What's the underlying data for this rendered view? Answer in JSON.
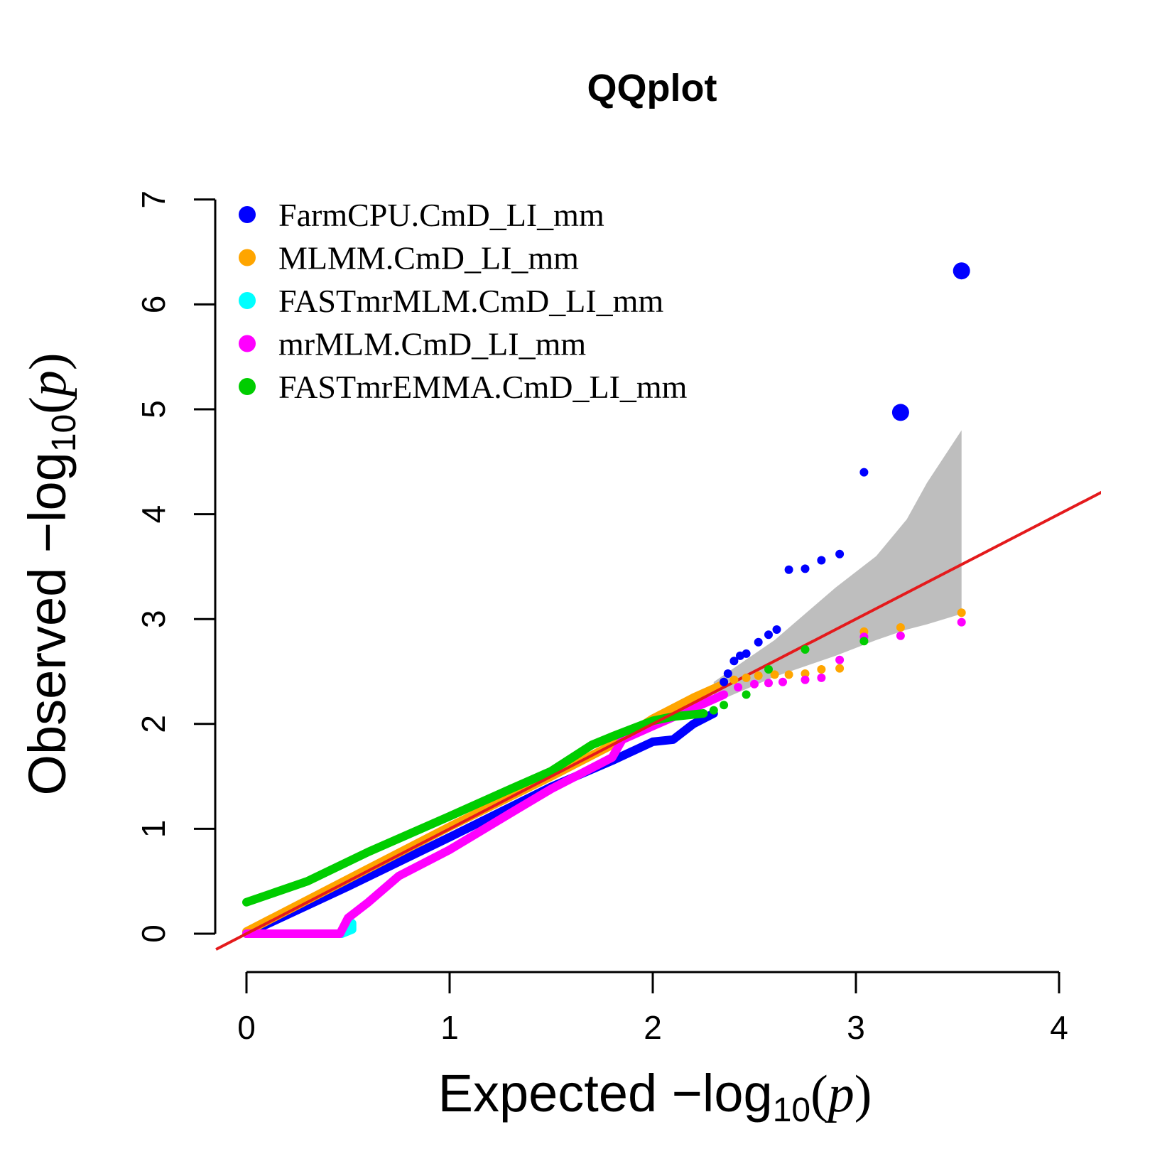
{
  "chart_data": {
    "type": "scatter",
    "title": "QQplot",
    "xlabel": {
      "prefix": "Expected  −log",
      "sub": "10",
      "mid": "(",
      "var": "p",
      "end": ")"
    },
    "ylabel": {
      "prefix": "Observed  −log",
      "sub": "10",
      "mid": "(",
      "var": "p",
      "end": ")"
    },
    "xlim": [
      0,
      4
    ],
    "ylim": [
      0,
      7
    ],
    "x_ticks": [
      0,
      1,
      2,
      3,
      4
    ],
    "y_ticks": [
      0,
      1,
      2,
      3,
      4,
      5,
      6,
      7
    ],
    "grid": false,
    "legend_position": "top-left",
    "reference_line": {
      "color": "#e41a1c",
      "slope": 1,
      "intercept": 0
    },
    "confidence_band": {
      "color": "#bebebe",
      "x": [
        2.3,
        2.6,
        2.9,
        3.1,
        3.25,
        3.35,
        3.52
      ],
      "upper": [
        2.4,
        2.8,
        3.3,
        3.6,
        3.95,
        4.3,
        4.8
      ],
      "lower": [
        2.2,
        2.45,
        2.65,
        2.8,
        2.9,
        2.95,
        3.05
      ]
    },
    "series": [
      {
        "name": "FarmCPU.CmD_LI_mm",
        "color": "#0000ff",
        "curve": [
          [
            0,
            0
          ],
          [
            0.5,
            0.45
          ],
          [
            1,
            0.92
          ],
          [
            1.5,
            1.4
          ],
          [
            1.8,
            1.65
          ],
          [
            2,
            1.83
          ],
          [
            2.1,
            1.85
          ],
          [
            2.2,
            2.0
          ],
          [
            2.3,
            2.1
          ]
        ],
        "points": [
          [
            2.35,
            2.4
          ],
          [
            2.37,
            2.48
          ],
          [
            2.4,
            2.6
          ],
          [
            2.43,
            2.65
          ],
          [
            2.46,
            2.67
          ],
          [
            2.52,
            2.78
          ],
          [
            2.57,
            2.85
          ],
          [
            2.61,
            2.9
          ],
          [
            2.67,
            3.47
          ],
          [
            2.75,
            3.48
          ],
          [
            2.83,
            3.56
          ],
          [
            2.92,
            3.62
          ],
          [
            3.04,
            4.4
          ]
        ],
        "large_points": [
          [
            3.22,
            4.97
          ],
          [
            3.52,
            6.32
          ]
        ]
      },
      {
        "name": "MLMM.CmD_LI_mm",
        "color": "#ffa500",
        "curve": [
          [
            0,
            0.02
          ],
          [
            0.5,
            0.52
          ],
          [
            1,
            1.02
          ],
          [
            1.5,
            1.5
          ],
          [
            1.8,
            1.8
          ],
          [
            2,
            2.05
          ],
          [
            2.2,
            2.25
          ],
          [
            2.35,
            2.38
          ]
        ],
        "points": [
          [
            2.4,
            2.42
          ],
          [
            2.46,
            2.44
          ],
          [
            2.52,
            2.46
          ],
          [
            2.6,
            2.47
          ],
          [
            2.67,
            2.47
          ],
          [
            2.75,
            2.48
          ],
          [
            2.83,
            2.52
          ],
          [
            2.92,
            2.53
          ],
          [
            3.04,
            2.88
          ],
          [
            3.22,
            2.92
          ],
          [
            3.52,
            3.06
          ]
        ]
      },
      {
        "name": "FASTmrMLM.CmD_LI_mm",
        "color": "#00ffff",
        "curve": [
          [
            0,
            0
          ],
          [
            0.47,
            0
          ],
          [
            0.52,
            0.04
          ],
          [
            0.52,
            0.1
          ]
        ],
        "points": []
      },
      {
        "name": "mrMLM.CmD_LI_mm",
        "color": "#ff00ff",
        "curve": [
          [
            0,
            0
          ],
          [
            0.46,
            0
          ],
          [
            0.5,
            0.15
          ],
          [
            0.6,
            0.3
          ],
          [
            0.75,
            0.55
          ],
          [
            1,
            0.8
          ],
          [
            1.3,
            1.15
          ],
          [
            1.5,
            1.38
          ],
          [
            1.7,
            1.58
          ],
          [
            1.8,
            1.68
          ],
          [
            1.85,
            1.85
          ],
          [
            2,
            1.98
          ],
          [
            2.2,
            2.15
          ],
          [
            2.35,
            2.28
          ]
        ],
        "points": [
          [
            2.42,
            2.35
          ],
          [
            2.5,
            2.38
          ],
          [
            2.57,
            2.39
          ],
          [
            2.64,
            2.4
          ],
          [
            2.75,
            2.42
          ],
          [
            2.83,
            2.44
          ],
          [
            2.92,
            2.61
          ],
          [
            3.04,
            2.83
          ],
          [
            3.22,
            2.84
          ],
          [
            3.52,
            2.97
          ]
        ]
      },
      {
        "name": "FASTmrEMMA.CmD_LI_mm",
        "color": "#00cd00",
        "curve": [
          [
            0,
            0.3
          ],
          [
            0.3,
            0.5
          ],
          [
            0.6,
            0.78
          ],
          [
            1,
            1.12
          ],
          [
            1.3,
            1.38
          ],
          [
            1.5,
            1.55
          ],
          [
            1.7,
            1.8
          ],
          [
            1.8,
            1.88
          ],
          [
            2,
            2.03
          ],
          [
            2.1,
            2.07
          ],
          [
            2.25,
            2.1
          ]
        ],
        "points": [
          [
            2.3,
            2.13
          ],
          [
            2.35,
            2.18
          ],
          [
            2.46,
            2.28
          ],
          [
            2.57,
            2.52
          ],
          [
            2.75,
            2.71
          ],
          [
            3.04,
            2.79
          ]
        ]
      }
    ]
  }
}
